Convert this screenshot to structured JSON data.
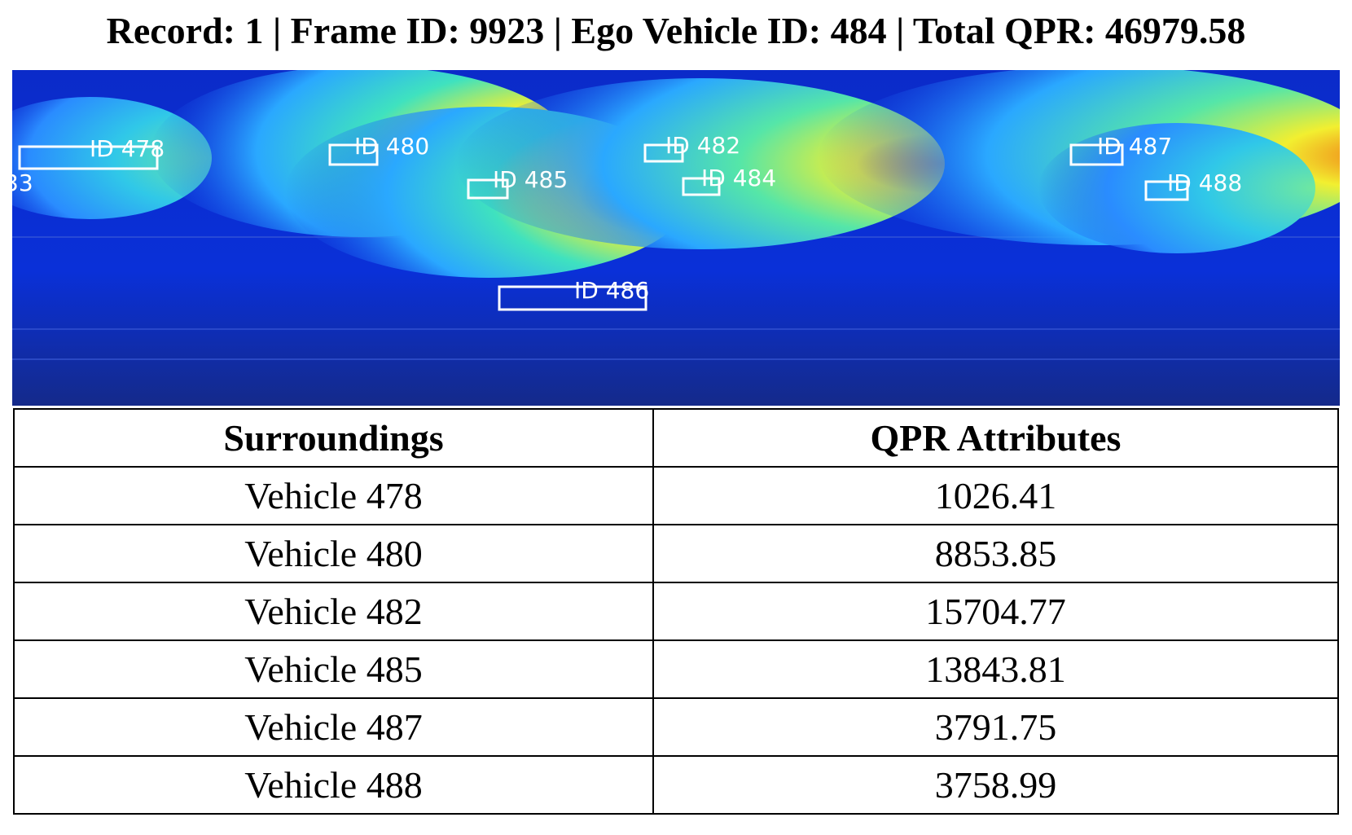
{
  "header": {
    "title": "Record: 1 | Frame ID: 9923 | Ego Vehicle ID: 484 | Total QPR: 46979.58"
  },
  "heatmap": {
    "colors": {
      "background": "#0a2fd6",
      "low": "#2aa8ff",
      "mid": "#3fe0c0",
      "high": "#f2f030",
      "peak": "#e8230e",
      "box": "#ffffff"
    },
    "vehicles": [
      {
        "label": "ID 478"
      },
      {
        "label": "ID 480"
      },
      {
        "label": "ID 485"
      },
      {
        "label": "ID 482"
      },
      {
        "label": "ID 484"
      },
      {
        "label": "ID 487"
      },
      {
        "label": "ID 488"
      },
      {
        "label": "ID 486"
      },
      {
        "label": "33"
      }
    ]
  },
  "table": {
    "headers": [
      "Surroundings",
      "QPR Attributes"
    ],
    "rows": [
      {
        "vehicle": "Vehicle 478",
        "qpr": "1026.41"
      },
      {
        "vehicle": "Vehicle 480",
        "qpr": "8853.85"
      },
      {
        "vehicle": "Vehicle 482",
        "qpr": "15704.77"
      },
      {
        "vehicle": "Vehicle 485",
        "qpr": "13843.81"
      },
      {
        "vehicle": "Vehicle 487",
        "qpr": "3791.75"
      },
      {
        "vehicle": "Vehicle 488",
        "qpr": "3758.99"
      }
    ]
  }
}
